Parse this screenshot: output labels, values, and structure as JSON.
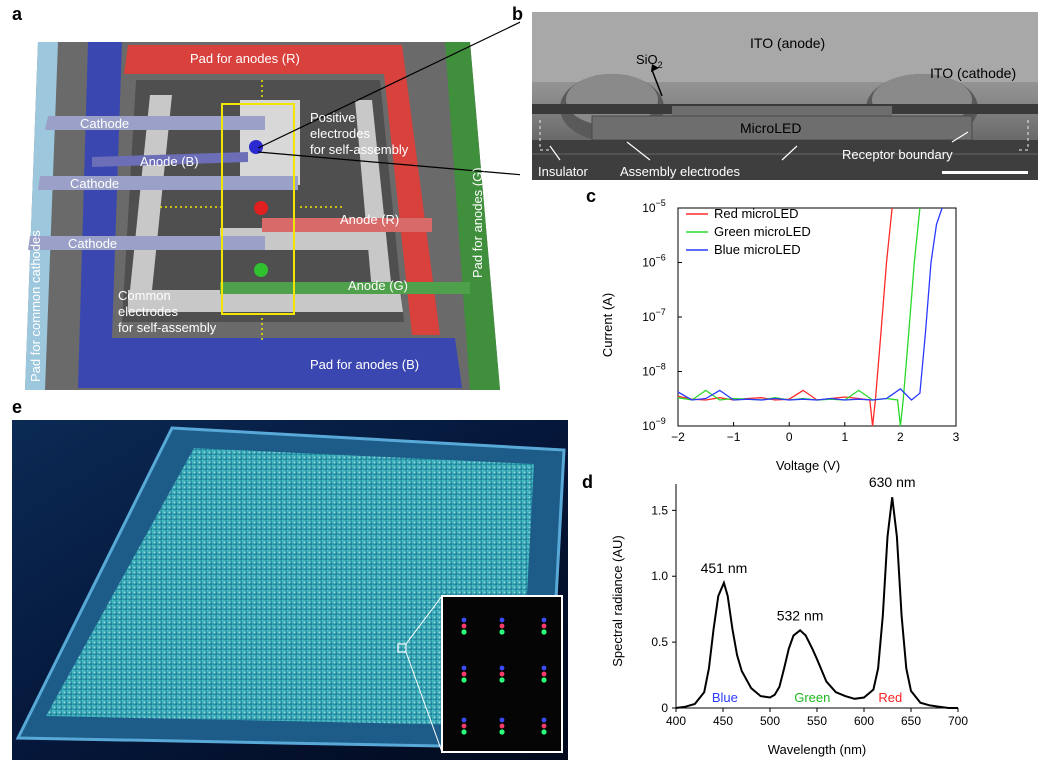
{
  "panel_letters": {
    "a": "a",
    "b": "b",
    "c": "c",
    "d": "d",
    "e": "e"
  },
  "panel_a": {
    "pad_anodes_r": "Pad for anodes (R)",
    "pad_anodes_g": "Pad for anodes (G)",
    "pad_anodes_b": "Pad for anodes (B)",
    "pad_common_cathodes": "Pad for common cathodes",
    "cathode_labels": [
      "Cathode",
      "Cathode",
      "Cathode"
    ],
    "anode_b": "Anode (B)",
    "anode_r": "Anode (R)",
    "anode_g": "Anode (G)",
    "positive_electrodes": [
      "Positive",
      "electrodes",
      "for self-assembly"
    ],
    "common_electrodes": [
      "Common",
      "electrodes",
      "for self-assembly"
    ],
    "colors": {
      "red": "#d9413d",
      "green": "#3f8f3c",
      "blue": "#3b47b0",
      "lightblue": "#8fbfd8",
      "highlight": "#f2e600"
    }
  },
  "panel_b": {
    "ito_anode": "ITO (anode)",
    "ito_cathode": "ITO (cathode)",
    "sio2_base": "SiO",
    "sio2_sub": "2",
    "microled": "MicroLED",
    "insulator": "Insulator",
    "assembly_electrodes": "Assembly electrodes",
    "receptor_boundary": "Receptor boundary"
  },
  "chart_data": [
    {
      "panel": "c",
      "type": "line",
      "xlabel": "Voltage (V)",
      "ylabel": "Current (A)",
      "xlim": [
        -2,
        3
      ],
      "ylim_log10": [
        -9,
        -5
      ],
      "log_y": true,
      "x_ticks": [
        "−2",
        "−1",
        "0",
        "1",
        "2",
        "3"
      ],
      "y_ticks": [
        {
          "base": "10",
          "exp": "−9",
          "value": -9
        },
        {
          "base": "10",
          "exp": "−8",
          "value": -8
        },
        {
          "base": "10",
          "exp": "−7",
          "value": -7
        },
        {
          "base": "10",
          "exp": "−6",
          "value": -6
        },
        {
          "base": "10",
          "exp": "−5",
          "value": -5
        }
      ],
      "legend_position": "top-left",
      "series": [
        {
          "name": "Red microLED",
          "color": "#ff2a2a",
          "x": [
            -2,
            -1.75,
            -1.5,
            -1.25,
            -1,
            -0.75,
            -0.5,
            -0.25,
            0,
            0.25,
            0.5,
            0.75,
            1.0,
            1.25,
            1.45,
            1.5,
            1.55,
            1.65,
            1.75,
            1.85
          ],
          "y": [
            3.5e-09,
            3.1e-09,
            3e-09,
            3.3e-09,
            3e-09,
            3.2e-09,
            3.3e-09,
            3e-09,
            3.1e-09,
            4.5e-09,
            3e-09,
            3.2e-09,
            3.4e-09,
            3.2e-09,
            3e-09,
            1e-09,
            3e-09,
            5e-08,
            1e-06,
            1.5e-05
          ]
        },
        {
          "name": "Green microLED",
          "color": "#2ad82a",
          "x": [
            -2,
            -1.75,
            -1.5,
            -1.25,
            -1,
            -0.75,
            -0.5,
            -0.25,
            0,
            0.25,
            0.5,
            0.75,
            1.0,
            1.25,
            1.5,
            1.75,
            1.95,
            2.0,
            2.05,
            2.15,
            2.25,
            2.35
          ],
          "y": [
            3.3e-09,
            3e-09,
            4.5e-09,
            3e-09,
            3.2e-09,
            3.1e-09,
            3e-09,
            3.3e-09,
            3e-09,
            3.2e-09,
            3e-09,
            3.1e-09,
            3e-09,
            4.5e-09,
            3e-09,
            3.2e-09,
            3e-09,
            1e-09,
            3e-09,
            5e-08,
            1e-06,
            1.5e-05
          ]
        },
        {
          "name": "Blue microLED",
          "color": "#2a3aff",
          "x": [
            -2,
            -1.75,
            -1.5,
            -1.25,
            -1,
            -0.75,
            -0.5,
            -0.25,
            0,
            0.25,
            0.5,
            0.75,
            1.0,
            1.25,
            1.5,
            1.75,
            2.0,
            2.2,
            2.35,
            2.45,
            2.55,
            2.65,
            2.75
          ],
          "y": [
            4.2e-09,
            3e-09,
            3.2e-09,
            4.5e-09,
            3e-09,
            3.1e-09,
            3e-09,
            3.2e-09,
            3e-09,
            3.1e-09,
            3e-09,
            3.2e-09,
            3e-09,
            3.1e-09,
            3e-09,
            3.2e-09,
            4.8e-09,
            3e-09,
            4e-09,
            5e-08,
            1e-06,
            5e-06,
            1.6e-05
          ]
        }
      ]
    },
    {
      "panel": "d",
      "type": "line",
      "xlabel": "Wavelength (nm)",
      "ylabel": "Spectral radiance (AU)",
      "xlim": [
        400,
        700
      ],
      "ylim": [
        0,
        1.7
      ],
      "x_ticks": [
        400,
        450,
        500,
        550,
        600,
        650,
        700
      ],
      "y_ticks": [
        "0",
        "0.5",
        "1.0",
        "1.5"
      ],
      "y_tick_values": [
        0,
        0.5,
        1.0,
        1.5
      ],
      "series": [
        {
          "color": "#000000",
          "x": [
            400,
            410,
            420,
            430,
            435,
            440,
            445,
            451,
            455,
            460,
            465,
            470,
            480,
            490,
            500,
            505,
            510,
            515,
            520,
            525,
            532,
            538,
            545,
            550,
            560,
            570,
            580,
            590,
            600,
            610,
            615,
            620,
            625,
            630,
            635,
            640,
            645,
            650,
            660,
            670,
            680,
            690,
            700
          ],
          "y": [
            0.0,
            0.01,
            0.03,
            0.12,
            0.3,
            0.6,
            0.85,
            0.95,
            0.85,
            0.6,
            0.4,
            0.28,
            0.15,
            0.09,
            0.08,
            0.1,
            0.16,
            0.3,
            0.45,
            0.55,
            0.59,
            0.55,
            0.45,
            0.37,
            0.2,
            0.12,
            0.09,
            0.07,
            0.08,
            0.14,
            0.3,
            0.7,
            1.3,
            1.6,
            1.3,
            0.7,
            0.3,
            0.13,
            0.04,
            0.02,
            0.01,
            0.0,
            0.0
          ]
        }
      ],
      "peak_annotations": [
        {
          "text": "451 nm",
          "x": 451,
          "y": 0.95
        },
        {
          "text": "532 nm",
          "x": 532,
          "y": 0.59
        },
        {
          "text": "630 nm",
          "x": 630,
          "y": 1.6
        }
      ],
      "band_labels": [
        {
          "text": "Blue",
          "x": 452,
          "color": "#2a3aff"
        },
        {
          "text": "Green",
          "x": 545,
          "color": "#1fb81f"
        },
        {
          "text": "Red",
          "x": 628,
          "color": "#ff2020"
        }
      ]
    }
  ]
}
